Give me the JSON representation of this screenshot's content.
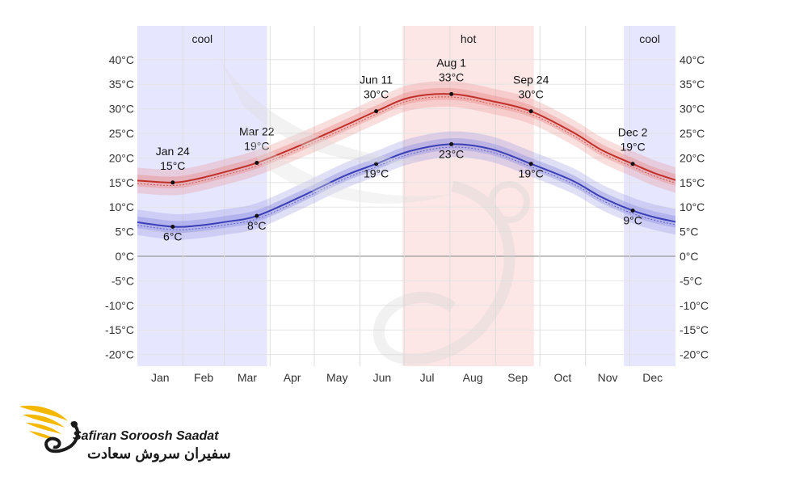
{
  "chart_data": {
    "type": "line",
    "x_months": [
      "Jan",
      "Feb",
      "Mar",
      "Apr",
      "May",
      "Jun",
      "Jul",
      "Aug",
      "Sep",
      "Oct",
      "Nov",
      "Dec"
    ],
    "ylim": [
      -22,
      42
    ],
    "yticks": [
      "40°C",
      "35°C",
      "30°C",
      "25°C",
      "20°C",
      "15°C",
      "10°C",
      "5°C",
      "0°C",
      "-5°C",
      "-10°C",
      "-15°C",
      "-20°C"
    ],
    "ytick_values": [
      40,
      35,
      30,
      25,
      20,
      15,
      10,
      5,
      0,
      -5,
      -10,
      -15,
      -20
    ],
    "grid": true,
    "seasons": [
      {
        "label": "cool",
        "start_day": 0,
        "end_day": 88,
        "color": "#e6e6ff"
      },
      {
        "label": "hot",
        "start_day": 180,
        "end_day": 269,
        "color": "#fde6e6"
      },
      {
        "label": "cool",
        "start_day": 330,
        "end_day": 365,
        "color": "#e6e6ff"
      }
    ],
    "series": [
      {
        "key": "high",
        "color": "#c0302b",
        "band_color": "#e88a88",
        "points": [
          [
            0,
            15.4
          ],
          [
            24,
            15
          ],
          [
            40,
            15.7
          ],
          [
            60,
            17.2
          ],
          [
            81,
            19
          ],
          [
            110,
            22.5
          ],
          [
            140,
            26.5
          ],
          [
            162,
            29.5
          ],
          [
            185,
            32.3
          ],
          [
            213,
            33
          ],
          [
            240,
            31.6
          ],
          [
            267,
            29.5
          ],
          [
            295,
            25.3
          ],
          [
            315,
            21.6
          ],
          [
            336,
            18.8
          ],
          [
            350,
            17
          ],
          [
            365,
            15.5
          ]
        ]
      },
      {
        "key": "low",
        "color": "#3b3fb5",
        "band_color": "#8c8de0",
        "points": [
          [
            0,
            6.9
          ],
          [
            24,
            6
          ],
          [
            40,
            6.2
          ],
          [
            60,
            7
          ],
          [
            81,
            8.2
          ],
          [
            110,
            12
          ],
          [
            140,
            16.3
          ],
          [
            162,
            18.8
          ],
          [
            185,
            21.4
          ],
          [
            213,
            22.8
          ],
          [
            240,
            21.8
          ],
          [
            267,
            18.8
          ],
          [
            295,
            15.4
          ],
          [
            315,
            12
          ],
          [
            336,
            9.3
          ],
          [
            350,
            8
          ],
          [
            365,
            7
          ]
        ]
      }
    ],
    "annotations": [
      {
        "day": 24,
        "series": "high",
        "date": "Jan 24",
        "value": "15°C",
        "pos": "above"
      },
      {
        "day": 81,
        "series": "high",
        "date": "Mar 22",
        "value": "19°C",
        "pos": "above"
      },
      {
        "day": 162,
        "series": "high",
        "date": "Jun 11",
        "value": "30°C",
        "pos": "above"
      },
      {
        "day": 213,
        "series": "high",
        "date": "Aug 1",
        "value": "33°C",
        "pos": "above"
      },
      {
        "day": 267,
        "series": "high",
        "date": "Sep 24",
        "value": "30°C",
        "pos": "above"
      },
      {
        "day": 336,
        "series": "high",
        "date": "Dec 2",
        "value": "19°C",
        "pos": "above"
      },
      {
        "day": 24,
        "series": "low",
        "date": "",
        "value": "6°C",
        "pos": "below"
      },
      {
        "day": 81,
        "series": "low",
        "date": "",
        "value": "8°C",
        "pos": "below"
      },
      {
        "day": 162,
        "series": "low",
        "date": "",
        "value": "19°C",
        "pos": "below"
      },
      {
        "day": 213,
        "series": "low",
        "date": "",
        "value": "23°C",
        "pos": "below"
      },
      {
        "day": 267,
        "series": "low",
        "date": "",
        "value": "19°C",
        "pos": "below"
      },
      {
        "day": 336,
        "series": "low",
        "date": "",
        "value": "9°C",
        "pos": "below"
      }
    ]
  },
  "logo": {
    "name_en": "Safiran Soroosh Saadat",
    "name_fa": "سفیران سروش سعادت"
  }
}
